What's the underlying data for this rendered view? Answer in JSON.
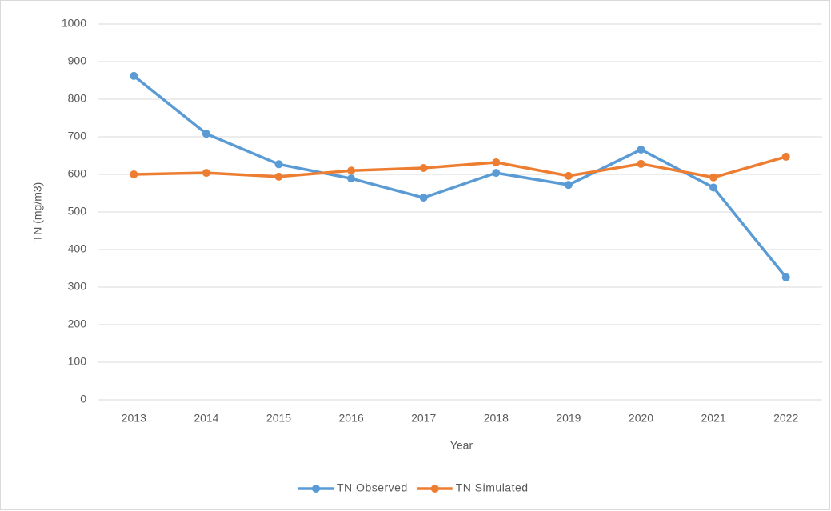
{
  "chart_data": {
    "type": "line",
    "xlabel": "Year",
    "ylabel": "TN (mg/m3)",
    "categories": [
      "2013",
      "2014",
      "2015",
      "2016",
      "2017",
      "2018",
      "2019",
      "2020",
      "2021",
      "2022"
    ],
    "series": [
      {
        "name": "TN Observed",
        "color": "#5b9bd5",
        "values": [
          862,
          708,
          627,
          589,
          538,
          604,
          572,
          666,
          565,
          326
        ]
      },
      {
        "name": "TN Simulated",
        "color": "#ed7d31",
        "values": [
          600,
          604,
          594,
          610,
          617,
          632,
          596,
          628,
          592,
          647
        ]
      }
    ],
    "ylim": [
      0,
      1000
    ],
    "yticks": [
      0,
      100,
      200,
      300,
      400,
      500,
      600,
      700,
      800,
      900,
      1000
    ],
    "grid": true,
    "legend": "bottom"
  }
}
